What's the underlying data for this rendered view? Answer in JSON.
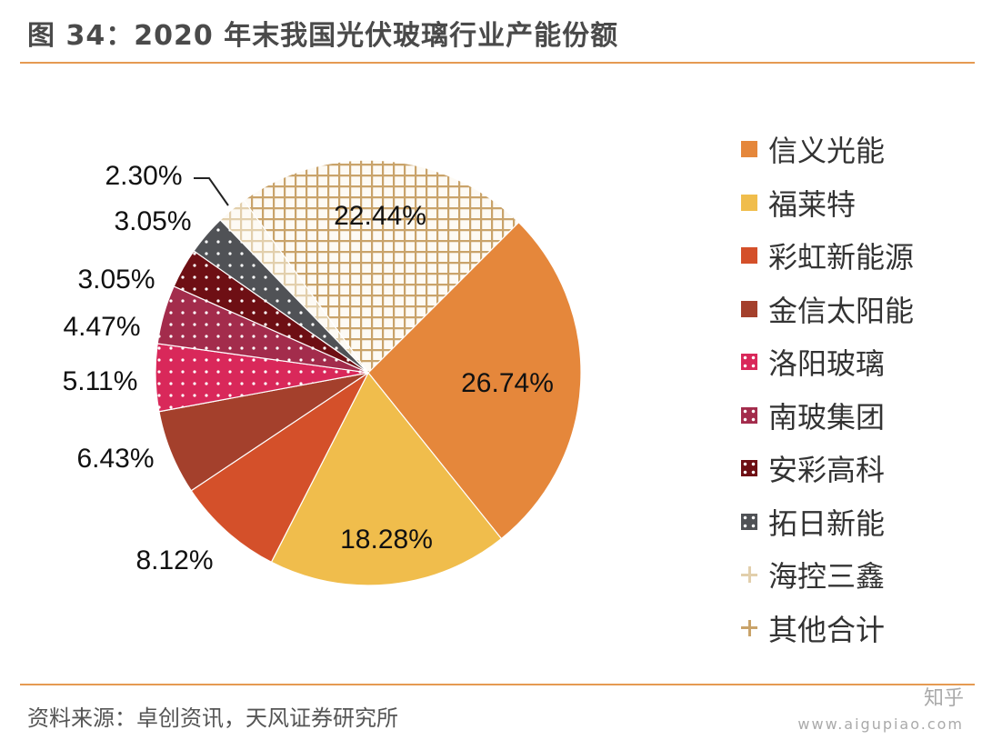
{
  "header": {
    "title": "图 34：2020 年末我国光伏玻璃行业产能份额"
  },
  "footer": {
    "source": "资料来源：卓创资讯，天风证券研究所",
    "watermark": "知乎",
    "watermark_url": "www.aigupiao.com"
  },
  "chart_data": {
    "type": "pie",
    "title": "图 34：2020 年末我国光伏玻璃行业产能份额",
    "legend_position": "right",
    "slices": [
      {
        "name": "信义光能",
        "value": 26.74,
        "label": "26.74%",
        "color": "#e5873b",
        "pattern": "solid"
      },
      {
        "name": "福莱特",
        "value": 18.28,
        "label": "18.28%",
        "color": "#f0bd4c",
        "pattern": "solid"
      },
      {
        "name": "彩虹新能源",
        "value": 8.12,
        "label": "8.12%",
        "color": "#d4502a",
        "pattern": "solid"
      },
      {
        "name": "金信太阳能",
        "value": 6.43,
        "label": "6.43%",
        "color": "#a4402c",
        "pattern": "solid"
      },
      {
        "name": "洛阳玻璃",
        "value": 5.11,
        "label": "5.11%",
        "color": "#d9285a",
        "pattern": "dots"
      },
      {
        "name": "南玻集团",
        "value": 4.47,
        "label": "4.47%",
        "color": "#a32c4c",
        "pattern": "dots"
      },
      {
        "name": "安彩高科",
        "value": 3.05,
        "label": "3.05%",
        "color": "#6e0f14",
        "pattern": "dots"
      },
      {
        "name": "拓日新能",
        "value": 3.05,
        "label": "3.05%",
        "color": "#505256",
        "pattern": "dots"
      },
      {
        "name": "海控三鑫",
        "value": 2.3,
        "label": "2.30%",
        "color": "#e2cfac",
        "pattern": "grid"
      },
      {
        "name": "其他合计",
        "value": 22.44,
        "label": "22.44%",
        "color": "#c9a36a",
        "pattern": "grid"
      }
    ]
  }
}
